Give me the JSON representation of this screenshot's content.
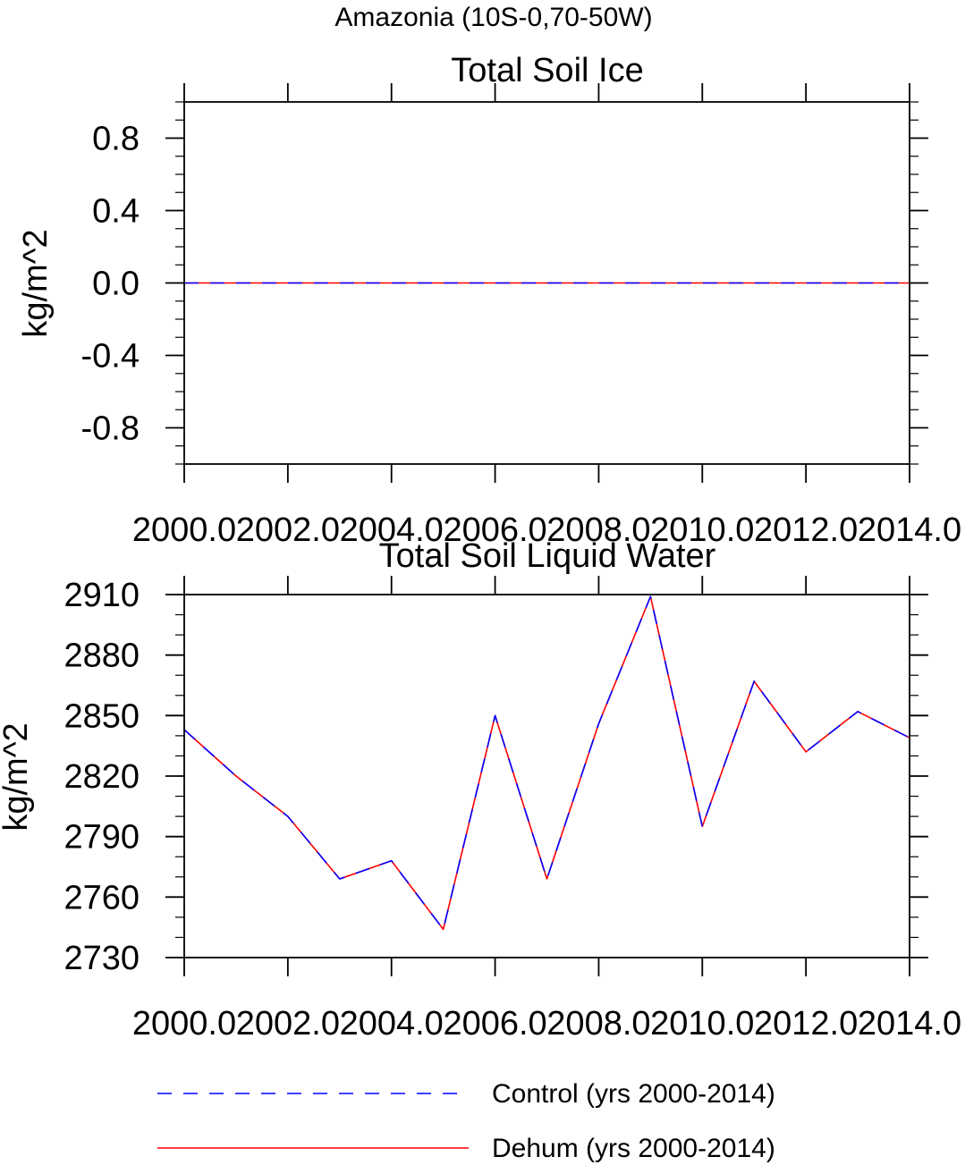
{
  "figure_title": "Amazonia (10S-0,70-50W)",
  "colors": {
    "control": "#0000ff",
    "dehum": "#ff0000",
    "axis": "#000000"
  },
  "legend": [
    {
      "label": "Control (yrs 2000-2014)",
      "style": "dashed",
      "color": "#0000ff"
    },
    {
      "label": "Dehum (yrs 2000-2014)",
      "style": "solid",
      "color": "#ff0000"
    }
  ],
  "chart_data": [
    {
      "type": "line",
      "title": "Total Soil Ice",
      "xlabel": "",
      "ylabel": "kg/m^2",
      "xlim": [
        2000,
        2014
      ],
      "ylim": [
        -1.0,
        1.0
      ],
      "x_ticks": [
        2000,
        2002,
        2004,
        2006,
        2008,
        2010,
        2012,
        2014
      ],
      "x_tick_labels": [
        "2000.0",
        "2002.0",
        "2004.0",
        "2006.0",
        "2008.0",
        "2010.0",
        "2012.0",
        "2014.0"
      ],
      "y_ticks": [
        -0.8,
        -0.4,
        0.0,
        0.4,
        0.8
      ],
      "y_tick_labels": [
        "-0.8",
        "-0.4",
        "0.0",
        "0.4",
        "0.8"
      ],
      "x": [
        2000,
        2001,
        2002,
        2003,
        2004,
        2005,
        2006,
        2007,
        2008,
        2009,
        2010,
        2011,
        2012,
        2013,
        2014
      ],
      "series": [
        {
          "name": "Control (yrs 2000-2014)",
          "values": [
            0,
            0,
            0,
            0,
            0,
            0,
            0,
            0,
            0,
            0,
            0,
            0,
            0,
            0,
            0
          ]
        },
        {
          "name": "Dehum (yrs 2000-2014)",
          "values": [
            0,
            0,
            0,
            0,
            0,
            0,
            0,
            0,
            0,
            0,
            0,
            0,
            0,
            0,
            0
          ]
        }
      ]
    },
    {
      "type": "line",
      "title": "Total Soil Liquid Water",
      "xlabel": "",
      "ylabel": "kg/m^2",
      "xlim": [
        2000,
        2014
      ],
      "ylim": [
        2730,
        2910
      ],
      "x_ticks": [
        2000,
        2002,
        2004,
        2006,
        2008,
        2010,
        2012,
        2014
      ],
      "x_tick_labels": [
        "2000.0",
        "2002.0",
        "2004.0",
        "2006.0",
        "2008.0",
        "2010.0",
        "2012.0",
        "2014.0"
      ],
      "y_ticks": [
        2730,
        2760,
        2790,
        2820,
        2850,
        2880,
        2910
      ],
      "y_tick_labels": [
        "2730",
        "2760",
        "2790",
        "2820",
        "2850",
        "2880",
        "2910"
      ],
      "x": [
        2000,
        2001,
        2002,
        2003,
        2004,
        2005,
        2006,
        2007,
        2008,
        2009,
        2010,
        2011,
        2012,
        2013,
        2014
      ],
      "series": [
        {
          "name": "Control (yrs 2000-2014)",
          "values": [
            2843,
            2820,
            2800,
            2769,
            2778,
            2744,
            2850,
            2769,
            2846,
            2909,
            2795,
            2867,
            2832,
            2852,
            2839
          ]
        },
        {
          "name": "Dehum (yrs 2000-2014)",
          "values": [
            2843,
            2820,
            2800,
            2769,
            2778,
            2744,
            2850,
            2769,
            2846,
            2909,
            2795,
            2867,
            2832,
            2852,
            2839
          ]
        }
      ]
    }
  ]
}
